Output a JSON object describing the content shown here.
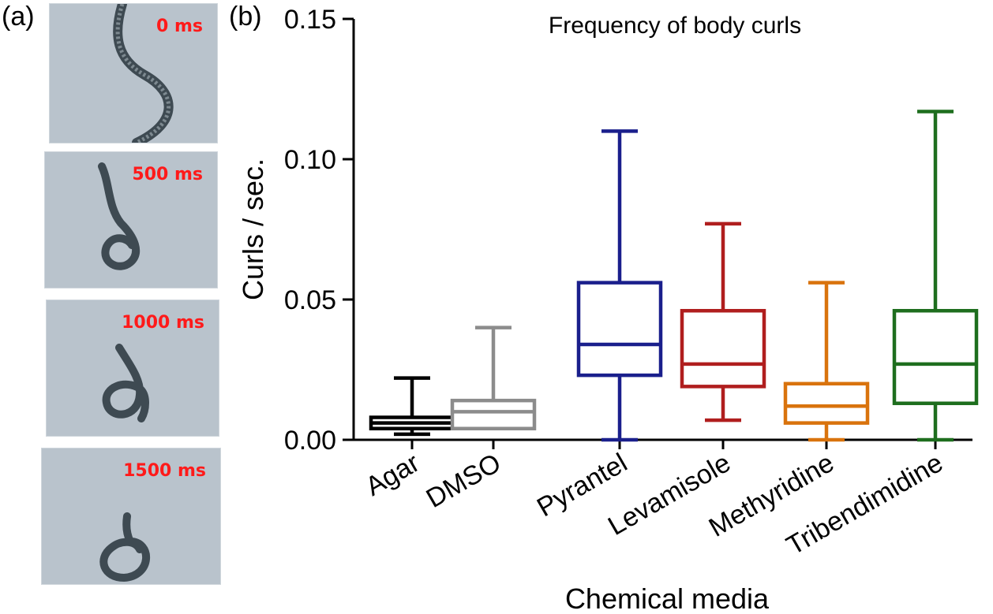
{
  "panels": {
    "a_label": "(a)",
    "b_label": "(b)"
  },
  "frames": [
    {
      "time": "0 ms"
    },
    {
      "time": "500 ms"
    },
    {
      "time": "1000 ms"
    },
    {
      "time": "1500 ms"
    }
  ],
  "chart_data": {
    "type": "boxplot",
    "title": "Frequency of body curls",
    "xlabel": "Chemical media",
    "ylabel": "Curls / sec.",
    "ylim": [
      0,
      0.15
    ],
    "yticks": [
      "0.00",
      "0.05",
      "0.10",
      "0.15"
    ],
    "ytick_values": [
      0,
      0.05,
      0.1,
      0.15
    ],
    "grid": false,
    "categories": [
      "Agar",
      "DMSO",
      "Pyrantel",
      "Levamisole",
      "Methyridine",
      "Tribendimidine"
    ],
    "boxes": [
      {
        "name": "Agar",
        "color": "#000000",
        "min": 0.002,
        "q1": 0.004,
        "median": 0.006,
        "q3": 0.008,
        "max": 0.022
      },
      {
        "name": "DMSO",
        "color": "#8c8c8c",
        "min": 0.004,
        "q1": 0.004,
        "median": 0.01,
        "q3": 0.014,
        "max": 0.04
      },
      {
        "name": "Pyrantel",
        "color": "#1a1f8c",
        "min": 0.0,
        "q1": 0.023,
        "median": 0.034,
        "q3": 0.056,
        "max": 0.11
      },
      {
        "name": "Levamisole",
        "color": "#b01e1e",
        "min": 0.007,
        "q1": 0.019,
        "median": 0.027,
        "q3": 0.046,
        "max": 0.077
      },
      {
        "name": "Methyridine",
        "color": "#d9730d",
        "min": 0.0,
        "q1": 0.006,
        "median": 0.012,
        "q3": 0.02,
        "max": 0.056
      },
      {
        "name": "Tribendimidine",
        "color": "#1e6e1e",
        "min": 0.0,
        "q1": 0.013,
        "median": 0.027,
        "q3": 0.046,
        "max": 0.117
      }
    ]
  }
}
